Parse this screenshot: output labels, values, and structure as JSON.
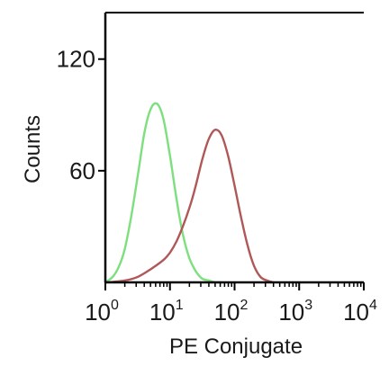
{
  "chart_data": {
    "type": "line",
    "xlabel": "PE Conjugate",
    "ylabel": "Counts",
    "xscale": "log",
    "xlim": [
      1,
      10000
    ],
    "ylim": [
      0,
      145
    ],
    "grid": false,
    "legend": "none",
    "x_ticks": [
      {
        "base": "10",
        "exp": "0"
      },
      {
        "base": "10",
        "exp": "1"
      },
      {
        "base": "10",
        "exp": "2"
      },
      {
        "base": "10",
        "exp": "3"
      },
      {
        "base": "10",
        "exp": "4"
      }
    ],
    "y_ticks": [
      "60",
      "120"
    ],
    "y_tick_values": [
      60,
      120
    ],
    "series": [
      {
        "color": "#7ddf7d",
        "x": [
          1.0,
          1.3,
          1.6,
          2.0,
          2.5,
          3.2,
          4.0,
          5.0,
          6.3,
          7.9,
          10.0,
          12.6,
          15.8,
          20.0,
          25.1,
          31.6,
          39.8,
          50.1,
          63.1
        ],
        "y": [
          0,
          3,
          8,
          18,
          35,
          58,
          80,
          93,
          96,
          88,
          68,
          45,
          26,
          13,
          6,
          2,
          1,
          0,
          0
        ]
      },
      {
        "color": "#b05858",
        "x": [
          1.0,
          2.0,
          3.2,
          5.0,
          7.9,
          10.0,
          12.6,
          15.8,
          20.0,
          25.1,
          31.6,
          39.8,
          50.1,
          63.1,
          79.4,
          100.0,
          125.9,
          158.5,
          199.5,
          251.2,
          316.2,
          398.1
        ],
        "y": [
          0,
          1,
          3,
          7,
          12,
          16,
          22,
          30,
          40,
          52,
          66,
          77,
          82,
          79,
          68,
          52,
          35,
          20,
          9,
          3,
          1,
          0
        ]
      }
    ]
  }
}
